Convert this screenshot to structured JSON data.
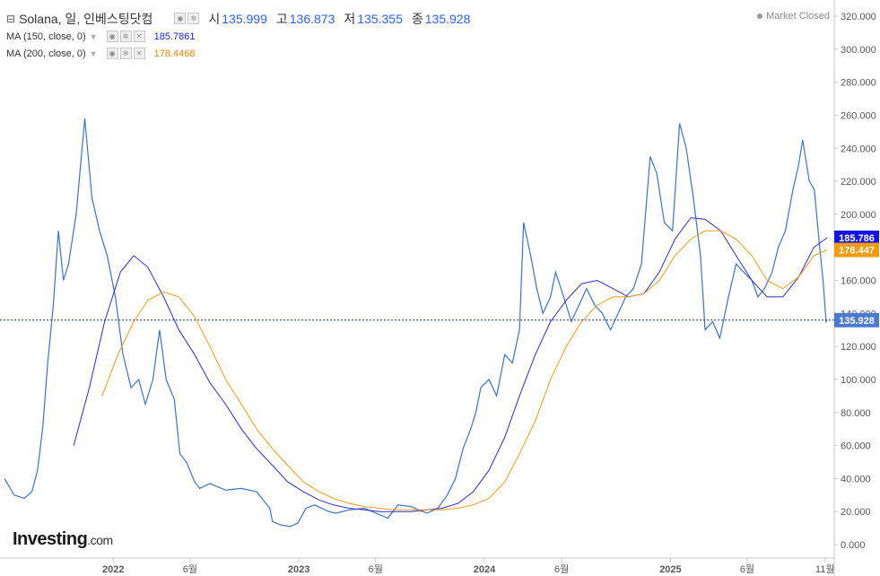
{
  "legend": {
    "symbol": "Solana, 일, 인베스팅닷컴",
    "open_label": "시",
    "open": "135.999",
    "high_label": "고",
    "high": "136.873",
    "low_label": "저",
    "low": "135.355",
    "close_label": "종",
    "close": "135.928",
    "ma150_label": "MA (150, close, 0)",
    "ma150_value": "185.7861",
    "ma200_label": "MA (200, close, 0)",
    "ma200_value": "178.4468"
  },
  "status": "Market Closed",
  "logo": {
    "main": "Investing",
    "suffix": ".com"
  },
  "chart_data": {
    "type": "line",
    "title": "",
    "xlabel": "",
    "ylabel": "",
    "ylim": [
      0,
      320
    ],
    "grid": false,
    "y_ticks": [
      "0.000",
      "20.000",
      "40.000",
      "60.000",
      "80.000",
      "100.000",
      "120.000",
      "140.000",
      "160.000",
      "180.000",
      "200.000",
      "220.000",
      "240.000",
      "260.000",
      "280.000",
      "300.000",
      "320.000"
    ],
    "y_tick_values": [
      0,
      20,
      40,
      60,
      80,
      100,
      120,
      140,
      160,
      180,
      200,
      220,
      240,
      260,
      280,
      300,
      320
    ],
    "x_ticks": [
      "2022",
      "6월",
      "2023",
      "6월",
      "2024",
      "6월",
      "2025",
      "6월",
      "11월"
    ],
    "x_tick_values": [
      "2022-01-01",
      "2022-06-01",
      "2023-01-01",
      "2023-06-01",
      "2024-01-01",
      "2024-06-01",
      "2025-01-01",
      "2025-06-01",
      "2025-11-01"
    ],
    "last_labels": [
      {
        "text": "185.786",
        "color": "#1414e6"
      },
      {
        "text": "178.447",
        "color": "#f39c12"
      },
      {
        "text": "135.928",
        "color": "#4a7bd0"
      }
    ],
    "series": [
      {
        "name": "Solana",
        "color": "#3b73c9",
        "x": [
          "2021-06-01",
          "2021-06-20",
          "2021-07-10",
          "2021-07-25",
          "2021-08-05",
          "2021-08-15",
          "2021-08-25",
          "2021-09-05",
          "2021-09-15",
          "2021-09-25",
          "2021-10-05",
          "2021-10-20",
          "2021-11-06",
          "2021-11-20",
          "2021-12-05",
          "2021-12-20",
          "2022-01-05",
          "2022-01-20",
          "2022-02-05",
          "2022-02-20",
          "2022-03-05",
          "2022-03-20",
          "2022-04-02",
          "2022-04-15",
          "2022-05-01",
          "2022-05-12",
          "2022-05-25",
          "2022-06-10",
          "2022-06-20",
          "2022-07-10",
          "2022-08-10",
          "2022-09-10",
          "2022-10-10",
          "2022-11-05",
          "2022-11-10",
          "2022-11-25",
          "2022-12-15",
          "2022-12-30",
          "2023-01-15",
          "2023-02-01",
          "2023-03-01",
          "2023-03-15",
          "2023-04-10",
          "2023-05-10",
          "2023-06-10",
          "2023-06-25",
          "2023-07-15",
          "2023-08-10",
          "2023-09-10",
          "2023-10-01",
          "2023-10-20",
          "2023-11-05",
          "2023-11-20",
          "2023-12-05",
          "2023-12-15",
          "2023-12-25",
          "2024-01-10",
          "2024-01-25",
          "2024-02-10",
          "2024-02-25",
          "2024-03-10",
          "2024-03-18",
          "2024-04-01",
          "2024-04-13",
          "2024-04-25",
          "2024-05-10",
          "2024-05-20",
          "2024-06-05",
          "2024-06-20",
          "2024-07-05",
          "2024-07-20",
          "2024-08-05",
          "2024-08-20",
          "2024-09-05",
          "2024-09-20",
          "2024-10-05",
          "2024-10-20",
          "2024-11-05",
          "2024-11-22",
          "2024-12-05",
          "2024-12-20",
          "2025-01-05",
          "2025-01-19",
          "2025-02-01",
          "2025-02-15",
          "2025-03-01",
          "2025-03-10",
          "2025-03-25",
          "2025-04-08",
          "2025-04-25",
          "2025-05-10",
          "2025-05-25",
          "2025-06-10",
          "2025-06-22",
          "2025-07-05",
          "2025-07-20",
          "2025-08-01",
          "2025-08-15",
          "2025-08-30",
          "2025-09-10",
          "2025-09-18",
          "2025-10-01",
          "2025-10-11",
          "2025-10-20",
          "2025-10-28",
          "2025-11-03",
          "2025-11-05"
        ],
        "y": [
          40,
          30,
          28,
          32,
          45,
          70,
          110,
          145,
          190,
          160,
          170,
          200,
          258,
          210,
          190,
          175,
          150,
          115,
          95,
          100,
          85,
          100,
          130,
          100,
          88,
          55,
          50,
          38,
          34,
          37,
          33,
          34,
          32,
          22,
          14,
          12,
          11,
          13,
          22,
          24,
          20,
          19,
          21,
          22,
          18,
          16,
          24,
          23,
          19,
          22,
          30,
          40,
          58,
          70,
          80,
          95,
          100,
          90,
          115,
          110,
          130,
          195,
          175,
          155,
          140,
          150,
          165,
          150,
          135,
          145,
          155,
          145,
          140,
          130,
          140,
          150,
          155,
          170,
          235,
          225,
          195,
          190,
          255,
          240,
          210,
          175,
          130,
          135,
          125,
          150,
          170,
          165,
          160,
          150,
          155,
          165,
          180,
          190,
          215,
          230,
          245,
          220,
          215,
          185,
          160,
          135,
          136
        ]
      },
      {
        "name": "MA (150, close, 0)",
        "color": "#2b2bd6",
        "x": [
          "2021-10-15",
          "2021-11-15",
          "2021-12-15",
          "2022-01-15",
          "2022-02-10",
          "2022-03-10",
          "2022-04-10",
          "2022-05-10",
          "2022-06-10",
          "2022-07-10",
          "2022-08-10",
          "2022-09-10",
          "2022-10-10",
          "2022-11-10",
          "2022-12-10",
          "2023-01-10",
          "2023-02-10",
          "2023-03-10",
          "2023-04-10",
          "2023-05-10",
          "2023-06-10",
          "2023-07-10",
          "2023-08-10",
          "2023-09-10",
          "2023-10-10",
          "2023-11-10",
          "2023-12-10",
          "2024-01-10",
          "2024-02-10",
          "2024-03-10",
          "2024-04-10",
          "2024-05-10",
          "2024-06-10",
          "2024-07-10",
          "2024-08-10",
          "2024-09-10",
          "2024-10-10",
          "2024-11-10",
          "2024-12-10",
          "2025-01-10",
          "2025-02-10",
          "2025-03-10",
          "2025-04-10",
          "2025-05-10",
          "2025-06-10",
          "2025-07-10",
          "2025-08-10",
          "2025-09-10",
          "2025-10-10",
          "2025-11-05"
        ],
        "y": [
          60,
          95,
          135,
          165,
          175,
          168,
          150,
          130,
          115,
          98,
          85,
          70,
          58,
          48,
          38,
          32,
          27,
          24,
          22,
          21,
          20,
          20,
          20,
          21,
          22,
          25,
          32,
          45,
          65,
          90,
          115,
          135,
          148,
          158,
          160,
          155,
          150,
          152,
          165,
          185,
          198,
          197,
          190,
          175,
          160,
          150,
          150,
          162,
          180,
          185.786
        ]
      },
      {
        "name": "MA (200, close, 0)",
        "color": "#f39c12",
        "x": [
          "2021-12-10",
          "2022-01-10",
          "2022-02-10",
          "2022-03-10",
          "2022-04-10",
          "2022-05-10",
          "2022-06-10",
          "2022-07-10",
          "2022-08-10",
          "2022-09-10",
          "2022-10-10",
          "2022-11-10",
          "2022-12-10",
          "2023-01-10",
          "2023-02-10",
          "2023-03-10",
          "2023-04-10",
          "2023-05-10",
          "2023-06-10",
          "2023-07-10",
          "2023-08-10",
          "2023-09-10",
          "2023-10-10",
          "2023-11-10",
          "2023-12-10",
          "2024-01-10",
          "2024-02-10",
          "2024-03-10",
          "2024-04-10",
          "2024-05-10",
          "2024-06-10",
          "2024-07-10",
          "2024-08-10",
          "2024-09-10",
          "2024-10-10",
          "2024-11-10",
          "2024-12-10",
          "2025-01-10",
          "2025-02-10",
          "2025-03-10",
          "2025-04-10",
          "2025-05-10",
          "2025-06-10",
          "2025-07-10",
          "2025-08-10",
          "2025-09-10",
          "2025-10-10",
          "2025-11-05"
        ],
        "y": [
          90,
          115,
          135,
          148,
          153,
          150,
          138,
          120,
          100,
          85,
          70,
          58,
          48,
          38,
          32,
          28,
          25,
          23,
          22,
          21,
          21,
          21,
          21,
          22,
          24,
          28,
          38,
          55,
          75,
          100,
          120,
          135,
          145,
          150,
          150,
          152,
          160,
          175,
          185,
          190,
          190,
          185,
          175,
          160,
          155,
          162,
          175,
          178.447
        ]
      }
    ]
  }
}
